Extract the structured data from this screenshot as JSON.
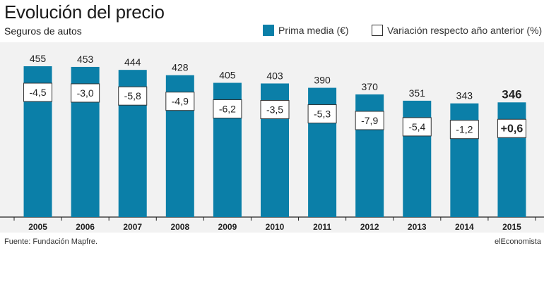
{
  "header": {
    "title": "Evolución del precio",
    "subtitle": "Seguros de autos"
  },
  "legend": [
    {
      "label": "Prima media (€)",
      "color": "#0b7fa8",
      "style": "filled"
    },
    {
      "label": "Variación respecto año anterior (%)",
      "color": "#ffffff",
      "style": "outlined"
    }
  ],
  "footer": {
    "source": "Fuente: Fundación Mapfre.",
    "brand": "elEconomista"
  },
  "colors": {
    "bar": "#0b7fa8",
    "panel": "#f2f2f2",
    "text": "#1a1a1a"
  },
  "chart_data": {
    "type": "bar",
    "title": "Evolución del precio",
    "subtitle": "Seguros de autos",
    "categories": [
      "2005",
      "2006",
      "2007",
      "2008",
      "2009",
      "2010",
      "2011",
      "2012",
      "2013",
      "2014",
      "2015"
    ],
    "series": [
      {
        "name": "Prima media (€)",
        "values": [
          455,
          453,
          444,
          428,
          405,
          403,
          390,
          370,
          351,
          343,
          346
        ]
      },
      {
        "name": "Variación respecto año anterior (%)",
        "values": [
          -4.5,
          -3.0,
          -5.8,
          -4.9,
          -6.2,
          -3.5,
          -5.3,
          -7.9,
          -5.4,
          -1.2,
          0.6
        ]
      }
    ],
    "value_labels": [
      "455",
      "453",
      "444",
      "428",
      "405",
      "403",
      "390",
      "370",
      "351",
      "343",
      "346"
    ],
    "change_labels": [
      "-4,5",
      "-3,0",
      "-5,8",
      "-4,9",
      "-6,2",
      "-3,5",
      "-5,3",
      "-7,9",
      "-5,4",
      "-1,2",
      "+0,6"
    ],
    "highlight_index": 10,
    "ylim": [
      0,
      455
    ],
    "grid": false,
    "legend_position": "top-right"
  }
}
